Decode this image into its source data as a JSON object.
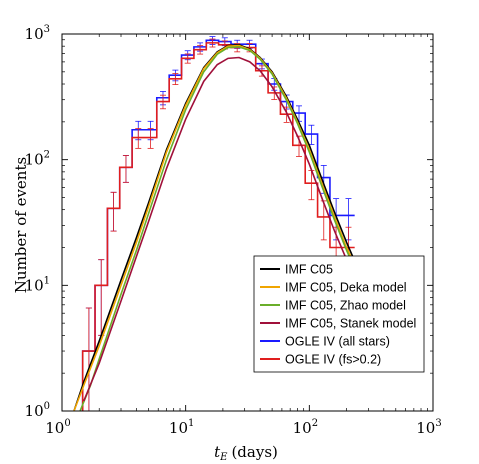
{
  "chart_data": {
    "type": "line",
    "xlabel_main": "t",
    "xlabel_sub": "E",
    "xlabel_unit": "(days)",
    "ylabel": "Number of events",
    "xscale": "log",
    "yscale": "log",
    "xlim": [
      1,
      1000
    ],
    "ylim": [
      1,
      1000
    ],
    "x_ticks": [
      {
        "base": "10",
        "exp": "0",
        "value": 1
      },
      {
        "base": "10",
        "exp": "1",
        "value": 10
      },
      {
        "base": "10",
        "exp": "2",
        "value": 100
      },
      {
        "base": "10",
        "exp": "3",
        "value": 1000
      }
    ],
    "y_ticks": [
      {
        "base": "10",
        "exp": "0",
        "value": 1
      },
      {
        "base": "10",
        "exp": "1",
        "value": 10
      },
      {
        "base": "10",
        "exp": "2",
        "value": 100
      },
      {
        "base": "10",
        "exp": "3",
        "value": 1000
      }
    ],
    "legend_position": "lower-right",
    "series": [
      {
        "name": "IMF C05",
        "kind": "curve",
        "color": "#000000",
        "x": [
          1.25,
          1.5,
          2,
          3,
          4,
          5,
          7,
          10,
          14,
          18,
          22,
          27,
          33,
          40,
          50,
          65,
          80,
          100,
          130,
          160,
          200,
          230
        ],
        "y": [
          1.0,
          1.7,
          3.6,
          11,
          24,
          45,
          120,
          280,
          540,
          720,
          810,
          820,
          760,
          650,
          500,
          320,
          210,
          130,
          65,
          38,
          22,
          16
        ]
      },
      {
        "name": "IMF C05, Deka model",
        "kind": "curve",
        "color": "#f0a500",
        "x": [
          1.25,
          1.5,
          2,
          3,
          4,
          5,
          7,
          10,
          14,
          18,
          22,
          27,
          33,
          40,
          50,
          65,
          80,
          100,
          130,
          160,
          200,
          230
        ],
        "y": [
          1.0,
          1.6,
          3.3,
          10,
          22,
          42,
          115,
          270,
          530,
          710,
          800,
          810,
          750,
          640,
          490,
          310,
          200,
          120,
          60,
          35,
          20,
          15
        ]
      },
      {
        "name": "IMF C05, Zhao model",
        "kind": "curve",
        "color": "#6aae2a",
        "x": [
          1.4,
          1.7,
          2,
          3,
          4,
          5,
          7,
          10,
          14,
          18,
          22,
          27,
          33,
          40,
          50,
          65,
          80,
          100,
          130,
          160,
          200,
          230
        ],
        "y": [
          1.0,
          1.6,
          2.6,
          8.5,
          19,
          37,
          100,
          250,
          500,
          690,
          780,
          790,
          740,
          630,
          480,
          300,
          195,
          115,
          57,
          33,
          19,
          14
        ]
      },
      {
        "name": "IMF C05, Stanek model",
        "kind": "curve",
        "color": "#a0103a",
        "x": [
          1.5,
          2,
          3,
          4,
          5,
          7,
          10,
          14,
          18,
          22,
          27,
          33,
          40,
          50,
          65,
          80,
          100,
          130,
          160,
          200,
          230
        ],
        "y": [
          1.2,
          2.4,
          7.5,
          17,
          32,
          85,
          210,
          420,
          570,
          640,
          650,
          600,
          510,
          380,
          240,
          155,
          92,
          46,
          27,
          16,
          12
        ]
      },
      {
        "name": "OGLE IV (all stars)",
        "kind": "histogram",
        "color": "#1a1aff",
        "edges": [
          1.47,
          1.85,
          2.33,
          2.93,
          3.69,
          4.64,
          5.84,
          7.36,
          9.26,
          11.66,
          14.68,
          18.47,
          23.26,
          29.28,
          36.86,
          46.4,
          58.4,
          73.5,
          92.6,
          116.6,
          146.8,
          184.7,
          232.6
        ],
        "values": [
          3,
          10,
          41,
          87,
          173,
          173,
          311,
          470,
          680,
          790,
          890,
          870,
          830,
          830,
          580,
          400,
          290,
          235,
          160,
          72,
          36,
          36
        ],
        "errors": [
          3.6,
          6,
          14,
          21,
          29,
          29,
          38,
          46,
          56,
          60,
          64,
          63,
          62,
          62,
          52,
          43,
          37,
          33,
          28,
          18,
          13,
          13
        ]
      },
      {
        "name": "OGLE IV (fs>0.2)",
        "kind": "histogram",
        "color": "#e01e1e",
        "edges": [
          1.47,
          1.85,
          2.33,
          2.93,
          3.69,
          4.64,
          5.84,
          7.36,
          9.26,
          11.66,
          14.68,
          18.47,
          23.26,
          29.28,
          36.86,
          46.4,
          58.4,
          73.5,
          92.6,
          116.6,
          146.8,
          184.7,
          232.6
        ],
        "values": [
          3,
          10,
          41,
          87,
          150,
          150,
          290,
          440,
          640,
          750,
          850,
          820,
          780,
          780,
          510,
          340,
          230,
          130,
          65,
          35,
          20,
          20
        ],
        "errors": [
          3.6,
          6,
          14,
          21,
          27,
          27,
          36,
          44,
          54,
          58,
          62,
          61,
          59,
          59,
          48,
          39,
          32,
          24,
          17,
          12,
          9,
          9
        ]
      }
    ]
  }
}
